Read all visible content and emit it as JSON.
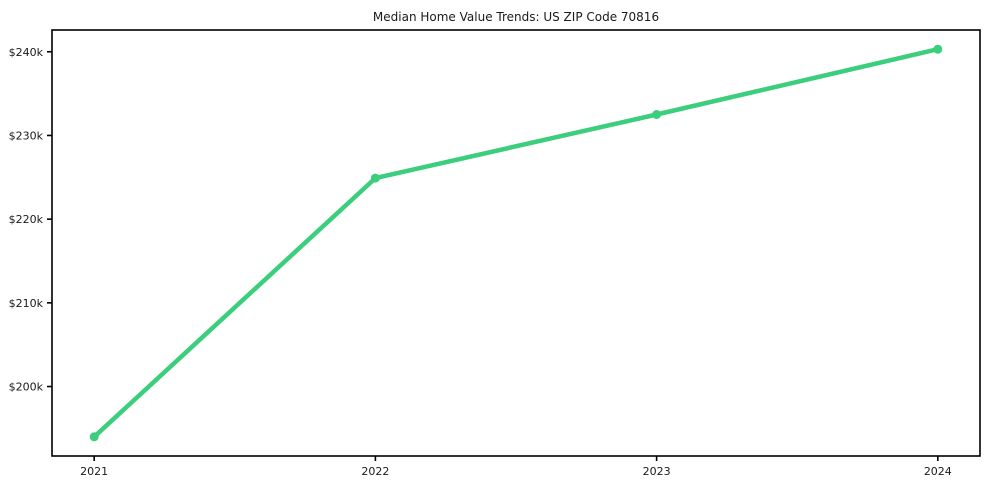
{
  "page": {
    "background": "#ffffff"
  },
  "chart_data": {
    "type": "line",
    "title": "Median Home Value Trends: US ZIP Code 70816",
    "x": [
      2021,
      2022,
      2023,
      2024
    ],
    "series": [
      {
        "name": "Median Home Value",
        "values": [
          194000,
          224900,
          232500,
          240300
        ]
      }
    ],
    "xticks": {
      "values": [
        2021,
        2022,
        2023,
        2024
      ],
      "labels": [
        "2021",
        "2022",
        "2023",
        "2024"
      ]
    },
    "yticks": {
      "values": [
        200000,
        210000,
        220000,
        230000,
        240000
      ],
      "labels": [
        "$200k",
        "$210k",
        "$220k",
        "$230k",
        "$240k"
      ]
    },
    "xlim": [
      2020.85,
      2024.15
    ],
    "ylim": [
      191700,
      242600
    ],
    "grid": false,
    "legend": "none",
    "xlabel": "",
    "ylabel": "",
    "line_color": "#3bce7c",
    "spine_color": "#000000",
    "tick_color": "#1a1a1a",
    "marker": "circle"
  }
}
